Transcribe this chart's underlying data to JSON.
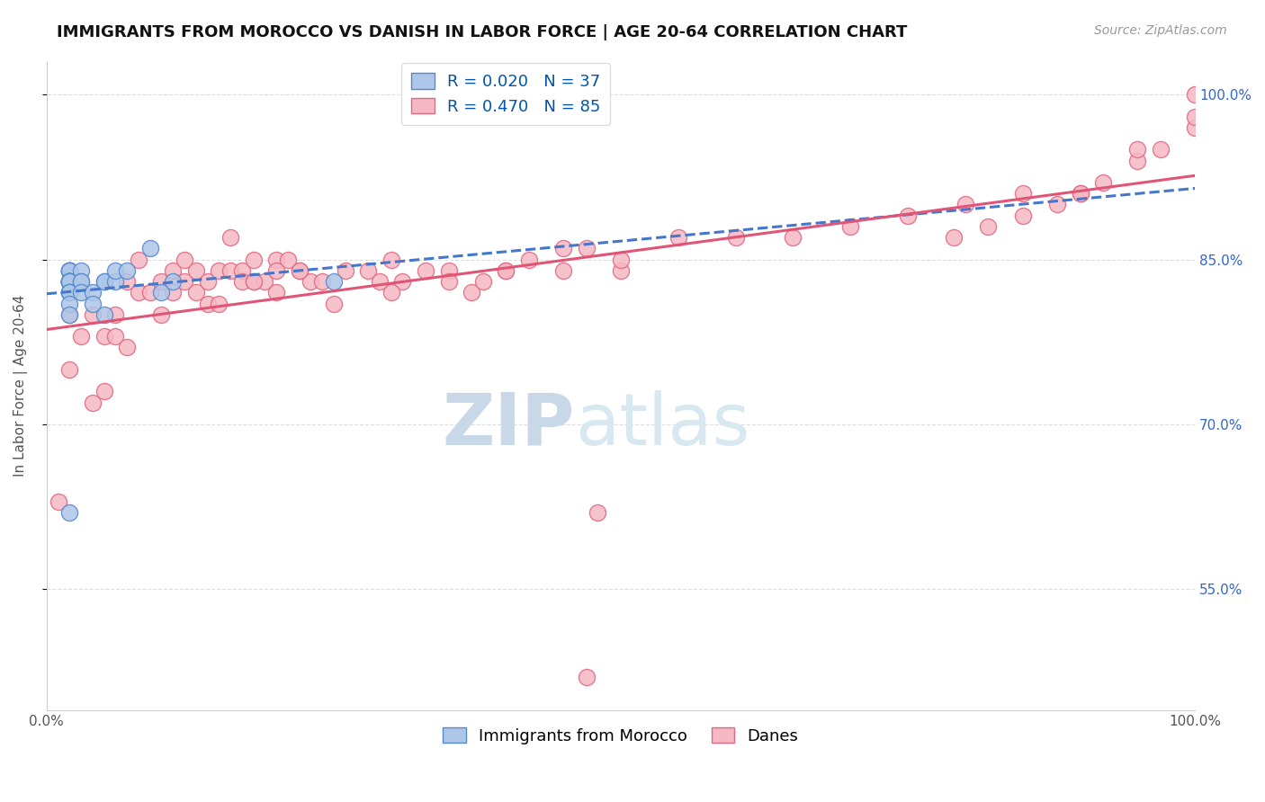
{
  "title": "IMMIGRANTS FROM MOROCCO VS DANISH IN LABOR FORCE | AGE 20-64 CORRELATION CHART",
  "source": "Source: ZipAtlas.com",
  "ylabel": "In Labor Force | Age 20-64",
  "xlim": [
    0.0,
    1.0
  ],
  "ylim": [
    0.44,
    1.03
  ],
  "blue_R": 0.02,
  "blue_N": 37,
  "pink_R": 0.47,
  "pink_N": 85,
  "blue_color": "#aec6e8",
  "pink_color": "#f5b8c4",
  "blue_edge": "#5588cc",
  "pink_edge": "#e06880",
  "trend_blue_color": "#4477cc",
  "trend_pink_color": "#e05575",
  "legend_labels": [
    "Immigrants from Morocco",
    "Danes"
  ],
  "yticks": [
    0.55,
    0.7,
    0.85,
    1.0
  ],
  "ytick_labels": [
    "55.0%",
    "70.0%",
    "85.0%",
    "100.0%"
  ],
  "xtick_labels": [
    "0.0%",
    "100.0%"
  ],
  "grid_color": "#dddddd",
  "bg_color": "#ffffff",
  "title_fontsize": 13,
  "axis_label_fontsize": 11,
  "tick_fontsize": 11,
  "legend_fontsize": 13,
  "source_fontsize": 10,
  "watermark_color_zip": "#c8d8e8",
  "watermark_color_atlas": "#d8e8f0",
  "watermark_fontsize": 58,
  "blue_x": [
    0.02,
    0.02,
    0.02,
    0.02,
    0.02,
    0.02,
    0.02,
    0.02,
    0.02,
    0.02,
    0.02,
    0.02,
    0.02,
    0.02,
    0.02,
    0.02,
    0.02,
    0.02,
    0.02,
    0.02,
    0.02,
    0.03,
    0.03,
    0.03,
    0.03,
    0.04,
    0.04,
    0.05,
    0.05,
    0.05,
    0.06,
    0.06,
    0.07,
    0.09,
    0.1,
    0.11,
    0.25
  ],
  "blue_y": [
    0.82,
    0.83,
    0.84,
    0.84,
    0.84,
    0.84,
    0.84,
    0.83,
    0.83,
    0.83,
    0.83,
    0.83,
    0.83,
    0.83,
    0.83,
    0.82,
    0.82,
    0.82,
    0.81,
    0.8,
    0.62,
    0.84,
    0.83,
    0.83,
    0.82,
    0.82,
    0.81,
    0.83,
    0.83,
    0.8,
    0.83,
    0.84,
    0.84,
    0.86,
    0.82,
    0.83,
    0.83
  ],
  "pink_x": [
    0.01,
    0.02,
    0.02,
    0.03,
    0.04,
    0.04,
    0.05,
    0.05,
    0.06,
    0.06,
    0.07,
    0.07,
    0.08,
    0.08,
    0.09,
    0.1,
    0.1,
    0.11,
    0.11,
    0.12,
    0.12,
    0.13,
    0.13,
    0.14,
    0.14,
    0.15,
    0.15,
    0.16,
    0.16,
    0.17,
    0.17,
    0.18,
    0.18,
    0.19,
    0.2,
    0.2,
    0.21,
    0.22,
    0.23,
    0.24,
    0.25,
    0.26,
    0.28,
    0.29,
    0.3,
    0.31,
    0.33,
    0.35,
    0.37,
    0.38,
    0.4,
    0.42,
    0.45,
    0.47,
    0.5,
    0.18,
    0.2,
    0.22,
    0.3,
    0.35,
    0.4,
    0.45,
    0.5,
    0.55,
    0.6,
    0.65,
    0.7,
    0.75,
    0.8,
    0.85,
    0.9,
    0.92,
    0.95,
    0.97,
    1.0,
    1.0,
    1.0,
    0.95,
    0.9,
    0.88,
    0.85,
    0.82,
    0.79,
    0.47,
    0.48
  ],
  "pink_y": [
    0.63,
    0.75,
    0.8,
    0.78,
    0.72,
    0.8,
    0.78,
    0.73,
    0.8,
    0.78,
    0.83,
    0.77,
    0.82,
    0.85,
    0.82,
    0.83,
    0.8,
    0.84,
    0.82,
    0.85,
    0.83,
    0.84,
    0.82,
    0.83,
    0.81,
    0.81,
    0.84,
    0.87,
    0.84,
    0.84,
    0.83,
    0.83,
    0.85,
    0.83,
    0.82,
    0.85,
    0.85,
    0.84,
    0.83,
    0.83,
    0.81,
    0.84,
    0.84,
    0.83,
    0.85,
    0.83,
    0.84,
    0.84,
    0.82,
    0.83,
    0.84,
    0.85,
    0.84,
    0.86,
    0.84,
    0.83,
    0.84,
    0.84,
    0.82,
    0.83,
    0.84,
    0.86,
    0.85,
    0.87,
    0.87,
    0.87,
    0.88,
    0.89,
    0.9,
    0.91,
    0.91,
    0.92,
    0.94,
    0.95,
    0.97,
    0.98,
    1.0,
    0.95,
    0.91,
    0.9,
    0.89,
    0.88,
    0.87,
    0.47,
    0.62
  ]
}
